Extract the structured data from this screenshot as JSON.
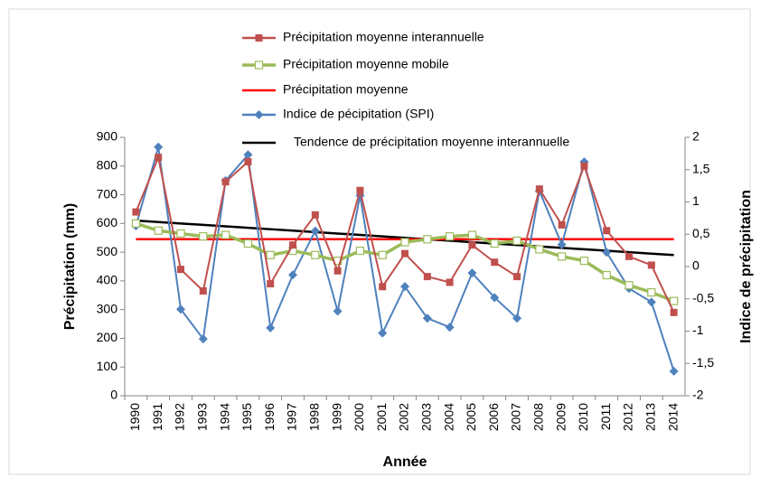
{
  "chart_data": {
    "type": "line",
    "categories": [
      "1990",
      "1991",
      "1992",
      "1993",
      "1994",
      "1995",
      "1996",
      "1997",
      "1998",
      "1999",
      "2000",
      "2001",
      "2002",
      "2003",
      "2004",
      "2005",
      "2006",
      "2007",
      "2008",
      "2009",
      "2010",
      "2011",
      "2012",
      "2013",
      "2014"
    ],
    "x_label": "Année",
    "y_label": "Précipitation (mm)",
    "y2_label": "Indice de précipitation",
    "ylim": [
      0,
      900
    ],
    "yticks": [
      0,
      100,
      200,
      300,
      400,
      500,
      600,
      700,
      800,
      900
    ],
    "y2lim": [
      -2,
      2
    ],
    "y2ticks": [
      -2,
      {
        "value": -1.5,
        "label": "-1,5"
      },
      -1,
      {
        "value": -0.5,
        "label": "-0,5"
      },
      0,
      {
        "value": 0.5,
        "label": "0,5"
      },
      1,
      {
        "value": 1.5,
        "label": "1,5"
      },
      2
    ],
    "series": [
      {
        "name": "Précipitation moyenne interannuelle",
        "color": "#c0504d",
        "marker": "square",
        "values": [
          640,
          830,
          440,
          365,
          745,
          815,
          390,
          525,
          630,
          435,
          715,
          380,
          495,
          415,
          395,
          525,
          465,
          415,
          720,
          595,
          800,
          575,
          485,
          455,
          290
        ]
      },
      {
        "name": "Précipitation moyenne mobile",
        "color": "#9bbb59",
        "marker": "square-open",
        "values": [
          600,
          575,
          565,
          555,
          560,
          530,
          490,
          505,
          490,
          470,
          505,
          490,
          535,
          545,
          555,
          560,
          530,
          540,
          510,
          485,
          470,
          420,
          385,
          360,
          330
        ]
      },
      {
        "name": "Précipitation moyenne",
        "color": "#ff0000",
        "marker": "none",
        "values": [
          545,
          545,
          545,
          545,
          545,
          545,
          545,
          545,
          545,
          545,
          545,
          545,
          545,
          545,
          545,
          545,
          545,
          545,
          545,
          545,
          545,
          545,
          545,
          545,
          545
        ]
      },
      {
        "name": "Indice de pécipitation (SPI)",
        "color": "#4f81bd",
        "marker": "diamond",
        "axis": "y2",
        "values": [
          0.63,
          1.85,
          -0.66,
          -1.12,
          1.33,
          1.73,
          -0.95,
          -0.13,
          0.55,
          -0.69,
          1.1,
          -1.03,
          -0.31,
          -0.8,
          -0.94,
          -0.1,
          -0.48,
          -0.8,
          1.17,
          0.34,
          1.62,
          0.22,
          -0.34,
          -0.55,
          -1.62
        ]
      },
      {
        "name": "Tendence de précipitation moyenne interannuelle",
        "color": "#000000",
        "marker": "none",
        "values": [
          610,
          605,
          600,
          595,
          590,
          585,
          580,
          575,
          570,
          565,
          560,
          555,
          550,
          545,
          540,
          535,
          530,
          525,
          520,
          515,
          510,
          505,
          500,
          495,
          490
        ]
      }
    ]
  }
}
